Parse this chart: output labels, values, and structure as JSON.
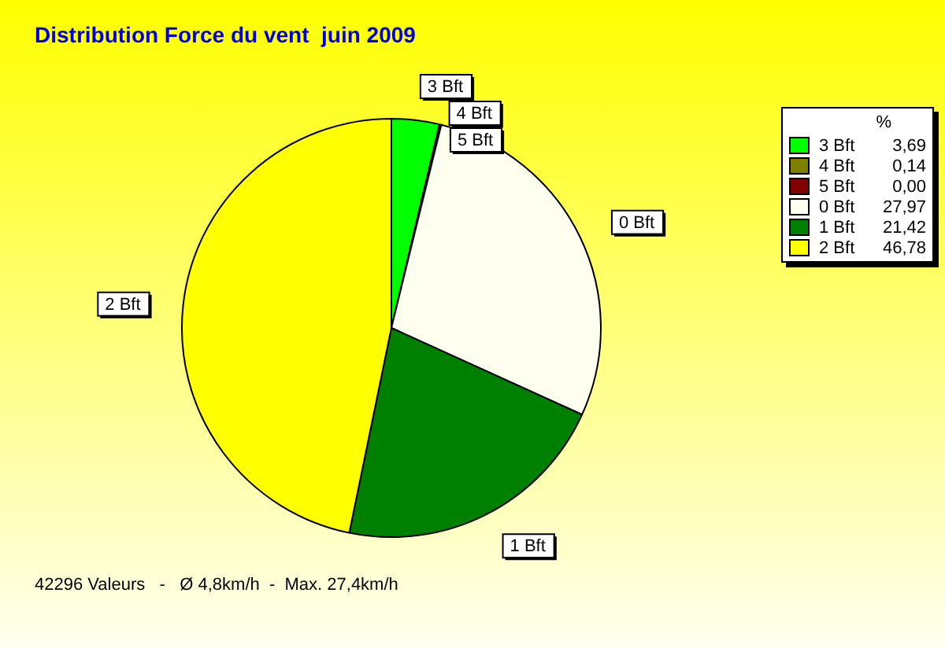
{
  "chart_data": {
    "type": "pie",
    "title": "Distribution Force du vent  juin 2009",
    "categories": [
      "3 Bft",
      "4 Bft",
      "5 Bft",
      "0 Bft",
      "1 Bft",
      "2 Bft"
    ],
    "values": [
      3.69,
      0.14,
      0.0,
      27.97,
      21.42,
      46.78
    ],
    "value_labels": [
      "3,69",
      "0,14",
      "0,00",
      "27,97",
      "21,42",
      "46,78"
    ],
    "colors": [
      "#00ff00",
      "#808000",
      "#800000",
      "#fffff0",
      "#008000",
      "#ffff00"
    ],
    "legend": "top right",
    "legend_title": "%",
    "annotations": [
      "42296 Valeurs   -   Ø 4,8km/h  -  Max. 27,4km/h"
    ]
  }
}
